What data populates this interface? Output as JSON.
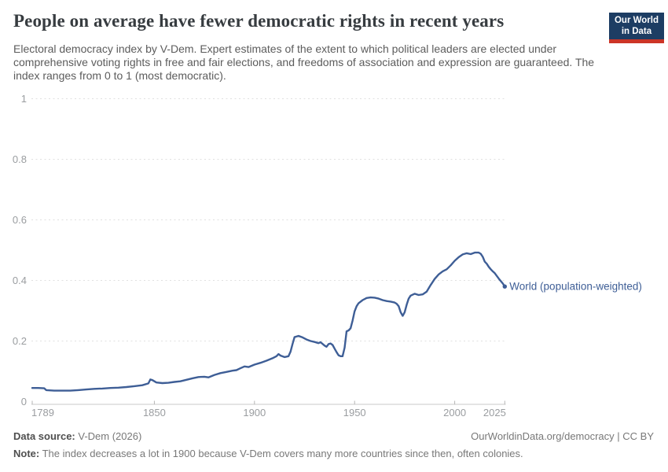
{
  "header": {
    "title": "People on average have fewer democratic rights in recent years",
    "subtitle": "Electoral democracy index by V-Dem. Expert estimates of the extent to which political leaders are elected under comprehensive voting rights in free and fair elections, and freedoms of association and expression are guaranteed. The index ranges from 0 to 1 (most democratic)."
  },
  "logo": {
    "line1": "Our World",
    "line2": "in Data",
    "bg_color": "#1d3d63",
    "stripe_color": "#cc3527"
  },
  "chart_data": {
    "type": "line",
    "title": "Electoral democracy index, World (population-weighted)",
    "xlabel": "",
    "ylabel": "",
    "xlim": [
      1789,
      2025
    ],
    "ylim": [
      0,
      1
    ],
    "grid": "horizontal-dashed",
    "legend_position": "end-of-line-label",
    "x_ticks": [
      1789,
      1850,
      1900,
      1950,
      2000,
      2025
    ],
    "x_tick_labels": [
      "1789",
      "1850",
      "1900",
      "1950",
      "2000",
      "2025"
    ],
    "y_ticks": [
      0,
      0.2,
      0.4,
      0.6,
      0.8,
      1
    ],
    "y_tick_labels": [
      "0",
      "0.2",
      "0.4",
      "0.6",
      "0.8",
      "1"
    ],
    "series": [
      {
        "name": "World (population-weighted)",
        "color": "#3e5e96",
        "points": [
          [
            1789,
            0.045
          ],
          [
            1792,
            0.045
          ],
          [
            1795,
            0.044
          ],
          [
            1796,
            0.038
          ],
          [
            1800,
            0.036
          ],
          [
            1804,
            0.036
          ],
          [
            1808,
            0.036
          ],
          [
            1812,
            0.038
          ],
          [
            1816,
            0.04
          ],
          [
            1820,
            0.042
          ],
          [
            1824,
            0.043
          ],
          [
            1828,
            0.045
          ],
          [
            1832,
            0.046
          ],
          [
            1836,
            0.048
          ],
          [
            1840,
            0.051
          ],
          [
            1844,
            0.054
          ],
          [
            1847,
            0.06
          ],
          [
            1848,
            0.073
          ],
          [
            1849,
            0.071
          ],
          [
            1851,
            0.063
          ],
          [
            1854,
            0.061
          ],
          [
            1857,
            0.062
          ],
          [
            1860,
            0.065
          ],
          [
            1863,
            0.067
          ],
          [
            1866,
            0.072
          ],
          [
            1869,
            0.077
          ],
          [
            1872,
            0.081
          ],
          [
            1875,
            0.082
          ],
          [
            1877,
            0.08
          ],
          [
            1880,
            0.088
          ],
          [
            1883,
            0.094
          ],
          [
            1886,
            0.098
          ],
          [
            1889,
            0.102
          ],
          [
            1891,
            0.104
          ],
          [
            1893,
            0.11
          ],
          [
            1895,
            0.116
          ],
          [
            1897,
            0.114
          ],
          [
            1900,
            0.122
          ],
          [
            1903,
            0.128
          ],
          [
            1906,
            0.135
          ],
          [
            1909,
            0.143
          ],
          [
            1911,
            0.15
          ],
          [
            1912,
            0.157
          ],
          [
            1913,
            0.152
          ],
          [
            1915,
            0.147
          ],
          [
            1917,
            0.15
          ],
          [
            1918,
            0.165
          ],
          [
            1919,
            0.19
          ],
          [
            1920,
            0.213
          ],
          [
            1922,
            0.217
          ],
          [
            1924,
            0.212
          ],
          [
            1926,
            0.205
          ],
          [
            1928,
            0.2
          ],
          [
            1930,
            0.197
          ],
          [
            1932,
            0.193
          ],
          [
            1933,
            0.196
          ],
          [
            1935,
            0.185
          ],
          [
            1936,
            0.181
          ],
          [
            1937,
            0.19
          ],
          [
            1938,
            0.192
          ],
          [
            1939,
            0.187
          ],
          [
            1940,
            0.175
          ],
          [
            1941,
            0.163
          ],
          [
            1942,
            0.153
          ],
          [
            1943,
            0.15
          ],
          [
            1944,
            0.15
          ],
          [
            1945,
            0.178
          ],
          [
            1946,
            0.232
          ],
          [
            1947,
            0.235
          ],
          [
            1948,
            0.242
          ],
          [
            1949,
            0.268
          ],
          [
            1950,
            0.298
          ],
          [
            1951,
            0.315
          ],
          [
            1952,
            0.325
          ],
          [
            1954,
            0.335
          ],
          [
            1956,
            0.342
          ],
          [
            1958,
            0.344
          ],
          [
            1960,
            0.343
          ],
          [
            1962,
            0.34
          ],
          [
            1964,
            0.335
          ],
          [
            1966,
            0.332
          ],
          [
            1968,
            0.33
          ],
          [
            1970,
            0.327
          ],
          [
            1971,
            0.323
          ],
          [
            1972,
            0.315
          ],
          [
            1973,
            0.295
          ],
          [
            1974,
            0.283
          ],
          [
            1975,
            0.295
          ],
          [
            1976,
            0.32
          ],
          [
            1977,
            0.34
          ],
          [
            1978,
            0.35
          ],
          [
            1980,
            0.356
          ],
          [
            1982,
            0.352
          ],
          [
            1984,
            0.354
          ],
          [
            1986,
            0.363
          ],
          [
            1988,
            0.385
          ],
          [
            1990,
            0.405
          ],
          [
            1992,
            0.42
          ],
          [
            1994,
            0.43
          ],
          [
            1996,
            0.437
          ],
          [
            1998,
            0.45
          ],
          [
            2000,
            0.465
          ],
          [
            2002,
            0.477
          ],
          [
            2004,
            0.486
          ],
          [
            2006,
            0.49
          ],
          [
            2008,
            0.487
          ],
          [
            2010,
            0.492
          ],
          [
            2012,
            0.492
          ],
          [
            2013,
            0.488
          ],
          [
            2014,
            0.478
          ],
          [
            2015,
            0.462
          ],
          [
            2016,
            0.455
          ],
          [
            2017,
            0.445
          ],
          [
            2018,
            0.437
          ],
          [
            2019,
            0.43
          ],
          [
            2020,
            0.424
          ],
          [
            2021,
            0.415
          ],
          [
            2022,
            0.406
          ],
          [
            2023,
            0.398
          ],
          [
            2024,
            0.39
          ],
          [
            2025,
            0.38
          ]
        ]
      }
    ],
    "colors": {
      "gridline": "#e0e0e0",
      "axis": "#c8c8c8",
      "tick": "#b5b5b5",
      "tick_label": "#9a9da0"
    }
  },
  "footer": {
    "source_label": "Data source:",
    "source_value": " V-Dem (2026)",
    "rights": "OurWorldinData.org/democracy | CC BY",
    "note_label": "Note:",
    "note_value": " The index decreases a lot in 1900 because V-Dem covers many more countries since then, often colonies."
  }
}
